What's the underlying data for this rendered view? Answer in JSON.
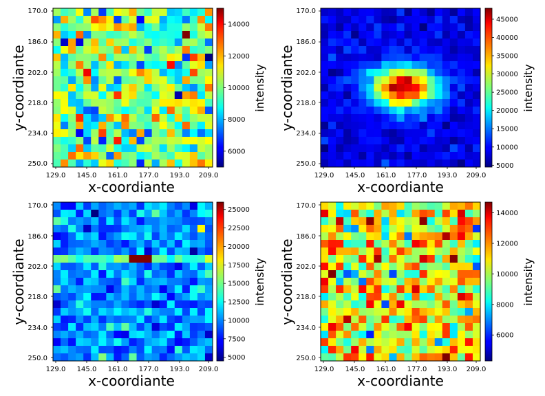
{
  "chart_data": [
    {
      "type": "heatmap",
      "panel": "top-left",
      "xlabel": "x-coordiante",
      "ylabel": "y-coordiante",
      "colorbar_label": "intensity",
      "colormap": "jet",
      "x_ticks": [
        "129.0",
        "145.0",
        "161.0",
        "177.0",
        "193.0",
        "209.0"
      ],
      "y_ticks": [
        "170.0",
        "186.0",
        "202.0",
        "218.0",
        "234.0",
        "250.0"
      ],
      "x_range": [
        129,
        211
      ],
      "y_range": [
        170,
        252
      ],
      "cmin": 5000,
      "cmax": 15000,
      "colorbar_ticks": [
        "6000",
        "8000",
        "10000",
        "12000",
        "14000"
      ],
      "colorbar_tick_values": [
        6000,
        8000,
        10000,
        12000,
        14000
      ],
      "description": "noisy uniform field around 10000 with one hot pixel near (193,182)",
      "hotspots": [
        {
          "x": 193,
          "y": 182,
          "value": 15000
        }
      ]
    },
    {
      "type": "heatmap",
      "panel": "top-right",
      "xlabel": "x-coordiante",
      "ylabel": "y-coordiante",
      "colorbar_label": "intensity",
      "colormap": "jet",
      "x_ticks": [
        "129.0",
        "145.0",
        "161.0",
        "177.0",
        "193.0",
        "209.0"
      ],
      "y_ticks": [
        "170.0",
        "186.0",
        "202.0",
        "218.0",
        "234.0",
        "250.0"
      ],
      "x_range": [
        129,
        211
      ],
      "y_range": [
        170,
        252
      ],
      "cmin": 4500,
      "cmax": 48000,
      "colorbar_ticks": [
        "5000",
        "10000",
        "15000",
        "20000",
        "25000",
        "30000",
        "35000",
        "40000",
        "45000"
      ],
      "colorbar_tick_values": [
        5000,
        10000,
        15000,
        20000,
        25000,
        30000,
        35000,
        40000,
        45000
      ],
      "description": "low background ~9000 with a bright blob peaking near (173,210)",
      "hotspots": [
        {
          "x": 173,
          "y": 210,
          "value": 47000
        }
      ]
    },
    {
      "type": "heatmap",
      "panel": "bottom-left",
      "xlabel": "x-coordiante",
      "ylabel": "y-coordiante",
      "colorbar_label": "intensity",
      "colormap": "jet",
      "x_ticks": [
        "129.0",
        "145.0",
        "161.0",
        "177.0",
        "193.0",
        "209.0"
      ],
      "y_ticks": [
        "170.0",
        "186.0",
        "202.0",
        "218.0",
        "234.0",
        "250.0"
      ],
      "x_range": [
        129,
        211
      ],
      "y_range": [
        170,
        252
      ],
      "cmin": 4500,
      "cmax": 26000,
      "colorbar_ticks": [
        "5000",
        "7500",
        "10000",
        "12500",
        "15000",
        "17500",
        "20000",
        "22500",
        "25000"
      ],
      "colorbar_tick_values": [
        5000,
        7500,
        10000,
        12500,
        15000,
        17500,
        20000,
        22500,
        25000
      ],
      "description": "background ~10000 with a horizontal brighter band near y=198 peaking near (175,198)",
      "hotspots": [
        {
          "x": 175,
          "y": 198,
          "value": 25500
        }
      ]
    },
    {
      "type": "heatmap",
      "panel": "bottom-right",
      "xlabel": "x-coordiante",
      "ylabel": "y-coordiante",
      "colorbar_label": "intensity",
      "colormap": "jet",
      "x_ticks": [
        "129.0",
        "145.0",
        "161.0",
        "177.0",
        "193.0",
        "209.0"
      ],
      "y_ticks": [
        "170.0",
        "186.0",
        "202.0",
        "218.0",
        "234.0",
        "250.0"
      ],
      "x_range": [
        129,
        211
      ],
      "y_range": [
        170,
        252
      ],
      "cmin": 4300,
      "cmax": 14700,
      "colorbar_ticks": [
        "6000",
        "8000",
        "10000",
        "12000",
        "14000"
      ],
      "colorbar_tick_values": [
        6000,
        8000,
        10000,
        12000,
        14000
      ],
      "description": "noisy field around 10500 with scattered warm pixels",
      "hotspots": [
        {
          "x": 181,
          "y": 202,
          "value": 14500
        }
      ]
    }
  ]
}
